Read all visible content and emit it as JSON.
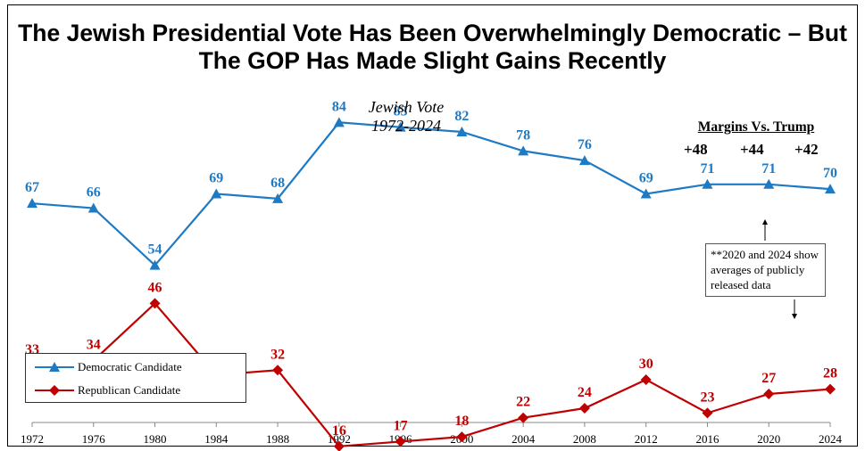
{
  "chart_data": {
    "type": "line",
    "title": "The Jewish Presidential Vote Has Been Overwhelmingly Democratic – But The GOP Has Made Slight Gains Recently",
    "subtitle_line1": "Jewish Vote",
    "subtitle_line2": "1972-2024",
    "categories": [
      "1972",
      "1976",
      "1980",
      "1984",
      "1988",
      "1992",
      "1996",
      "2000",
      "2004",
      "2008",
      "2012",
      "2016",
      "2020",
      "2024"
    ],
    "ylim": [
      0,
      95
    ],
    "grid": false,
    "legend_placement": "bottom-left",
    "series": [
      {
        "name": "Democratic Candidate",
        "color": "#1f7ac4",
        "marker": "triangle",
        "values": [
          67,
          66,
          54,
          69,
          68,
          84,
          83,
          82,
          78,
          76,
          69,
          71,
          71,
          70
        ]
      },
      {
        "name": "Republican Candidate",
        "color": "#c00000",
        "marker": "diamond",
        "values": [
          33,
          34,
          46,
          31,
          32,
          16,
          17,
          18,
          22,
          24,
          30,
          23,
          27,
          28
        ]
      }
    ],
    "margins": {
      "title": "Margins Vs. Trump",
      "values": [
        "+48",
        "+44",
        "+42"
      ]
    },
    "note": "**2020 and 2024 show averages of publicly released data"
  }
}
